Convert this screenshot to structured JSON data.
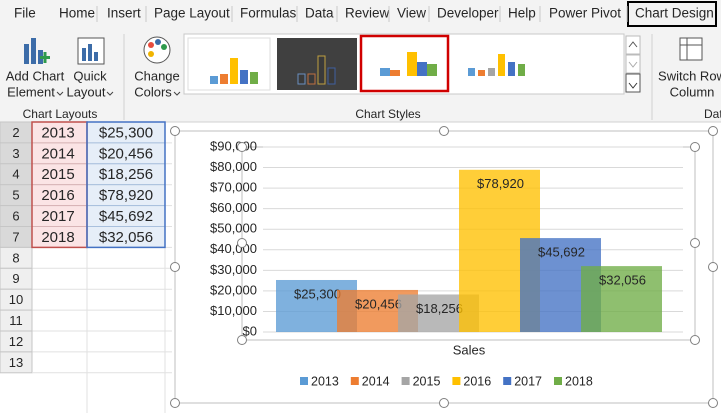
{
  "ribbon": {
    "tabs": [
      "File",
      "Home",
      "Insert",
      "Page Layout",
      "Formulas",
      "Data",
      "Review",
      "View",
      "Developer",
      "Help",
      "Power Pivot",
      "Chart Design"
    ],
    "buttons": [
      {
        "line1": "Add Chart",
        "line2": "Element"
      },
      {
        "line1": "Quick",
        "line2": "Layout"
      },
      {
        "line1": "Change",
        "line2": "Colors"
      },
      {
        "line1": "Switch Row",
        "line2": "Column"
      }
    ],
    "groups": [
      "Chart Layouts",
      "Chart Styles",
      "Dat"
    ]
  },
  "sheet": {
    "row_numbers": [
      2,
      3,
      4,
      5,
      6,
      7,
      8,
      9,
      10,
      11,
      12,
      13
    ],
    "rows": [
      [
        2013,
        "$25,300"
      ],
      [
        2014,
        "$20,456"
      ],
      [
        2015,
        "$18,256"
      ],
      [
        2016,
        "$78,920"
      ],
      [
        2017,
        "$45,692"
      ],
      [
        2018,
        "$32,056"
      ]
    ]
  },
  "chart_data": {
    "type": "bar",
    "categories": [
      "Sales"
    ],
    "series": [
      {
        "name": "2013",
        "color": "#5b9bd5",
        "values": [
          25300
        ],
        "value_labels": [
          "$25,300"
        ]
      },
      {
        "name": "2014",
        "color": "#ed7d31",
        "values": [
          20456
        ],
        "value_labels": [
          "$20,456"
        ]
      },
      {
        "name": "2015",
        "color": "#a5a5a5",
        "values": [
          18256
        ],
        "value_labels": [
          "$18,256"
        ]
      },
      {
        "name": "2016",
        "color": "#ffc000",
        "values": [
          78920
        ],
        "value_labels": [
          "$78,920"
        ]
      },
      {
        "name": "2017",
        "color": "#4472c4",
        "values": [
          45692
        ],
        "value_labels": [
          "$45,692"
        ]
      },
      {
        "name": "2018",
        "color": "#70ad47",
        "values": [
          32056
        ],
        "value_labels": [
          "$32,056"
        ]
      }
    ],
    "ylim": [
      0,
      90000
    ],
    "yticks": [
      {
        "value": 0,
        "label": "$0"
      },
      {
        "value": 10000,
        "label": "$10,000"
      },
      {
        "value": 20000,
        "label": "$20,000"
      },
      {
        "value": 30000,
        "label": "$30,000"
      },
      {
        "value": 40000,
        "label": "$40,000"
      },
      {
        "value": 50000,
        "label": "$50,000"
      },
      {
        "value": 60000,
        "label": "$60,000"
      },
      {
        "value": 70000,
        "label": "$70,000"
      },
      {
        "value": 80000,
        "label": "$80,000"
      },
      {
        "value": 90000,
        "label": "$90,000"
      }
    ],
    "grid": true,
    "legend": "bottom"
  }
}
